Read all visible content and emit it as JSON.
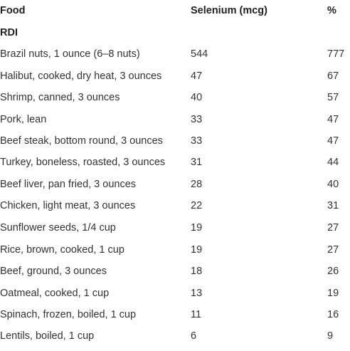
{
  "header": {
    "food": "Food",
    "selenium": "Selenium (mcg)",
    "percent": "%",
    "rdi": "RDI"
  },
  "rows": [
    {
      "food": "Brazil nuts, 1 ounce (6–8 nuts)",
      "selenium": "544",
      "percent": "777"
    },
    {
      "food": "Halibut, cooked, dry heat, 3 ounces",
      "selenium": "47",
      "percent": "67"
    },
    {
      "food": "Shrimp, canned, 3 ounces",
      "selenium": "40",
      "percent": "57"
    },
    {
      "food": "Pork, lean",
      "selenium": "33",
      "percent": "47"
    },
    {
      "food": "Beef steak, bottom round, 3 ounces",
      "selenium": "33",
      "percent": "47"
    },
    {
      "food": "Turkey, boneless, roasted, 3 ounces",
      "selenium": "31",
      "percent": "44"
    },
    {
      "food": "Beef liver, pan fried, 3 ounces",
      "selenium": "28",
      "percent": "40"
    },
    {
      "food": "Chicken, light meat, 3 ounces",
      "selenium": "22",
      "percent": "31"
    },
    {
      "food": "Sunflower seeds, 1/4 cup",
      "selenium": "19",
      "percent": "27"
    },
    {
      "food": "Rice, brown, cooked, 1 cup",
      "selenium": "19",
      "percent": "27"
    },
    {
      "food": "Beef, ground, 3 ounces",
      "selenium": "18",
      "percent": "26"
    },
    {
      "food": "Oatmeal, cooked, 1 cup",
      "selenium": "13",
      "percent": "19"
    },
    {
      "food": "Spinach, frozen, boiled, 1 cup",
      "selenium": "11",
      "percent": "16"
    },
    {
      "food": "Lentils, boiled, 1 cup",
      "selenium": "6",
      "percent": "9"
    }
  ]
}
